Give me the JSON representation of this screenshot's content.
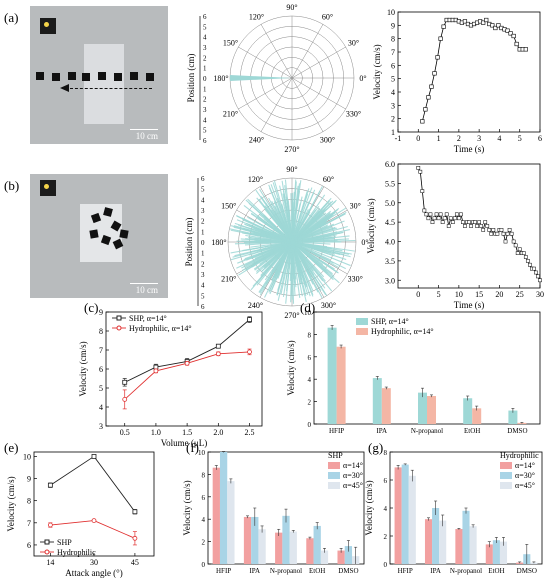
{
  "panels": {
    "a": {
      "label": "(a)",
      "scale": "10 cm"
    },
    "b": {
      "label": "(b)",
      "scale": "10 cm"
    },
    "c": {
      "label": "(c)"
    },
    "d": {
      "label": "(d)"
    },
    "e": {
      "label": "(e)"
    },
    "f": {
      "label": "(f)"
    },
    "g": {
      "label": "(g)"
    }
  },
  "polar": {
    "angle_ticks": [
      "90°",
      "60°",
      "30°",
      "0°",
      "330°",
      "300°",
      "270°",
      "240°",
      "210°",
      "180°",
      "150°",
      "120°"
    ],
    "radial_ticks": [
      "0",
      "1",
      "2",
      "3",
      "4",
      "5",
      "6"
    ],
    "ylabel": "Position (cm)"
  },
  "colors": {
    "teal": "#9ed8d6",
    "teal_dark": "#7cc6c4",
    "salmon": "#f4b6a5",
    "pink": "#f2a0a0",
    "lightblue": "#a9d4e6",
    "pale": "#dfe6ee",
    "red": "#e03030",
    "black": "#222222"
  },
  "chart_data": [
    {
      "id": "a-polar",
      "type": "line",
      "title": "",
      "xlabel": "",
      "ylabel": "Position (cm)",
      "theta_deg": [
        180
      ],
      "r": [
        6
      ],
      "rlim": [
        0,
        6
      ]
    },
    {
      "id": "a-velocity",
      "type": "line",
      "xlabel": "Time (s)",
      "ylabel": "Velocity (cm/s)",
      "xlim": [
        -1,
        6
      ],
      "ylim": [
        1,
        10
      ],
      "xticks": [
        "-1",
        "0",
        "1",
        "2",
        "3",
        "4",
        "5",
        "6"
      ],
      "yticks": [
        "1",
        "2",
        "3",
        "4",
        "5",
        "6",
        "7",
        "8",
        "9",
        "10"
      ],
      "x": [
        0.2,
        0.35,
        0.5,
        0.65,
        0.8,
        0.95,
        1.1,
        1.25,
        1.4,
        1.55,
        1.7,
        1.85,
        2.0,
        2.15,
        2.3,
        2.45,
        2.6,
        2.75,
        2.9,
        3.05,
        3.2,
        3.35,
        3.5,
        3.65,
        3.8,
        3.95,
        4.1,
        4.25,
        4.4,
        4.55,
        4.7,
        4.85,
        5.0,
        5.15,
        5.3
      ],
      "y": [
        1.8,
        2.7,
        3.6,
        4.4,
        5.4,
        6.6,
        8.0,
        8.9,
        9.4,
        9.4,
        9.4,
        9.4,
        9.3,
        9.2,
        9.3,
        9.1,
        9.0,
        9.1,
        9.2,
        9.3,
        9.2,
        9.4,
        9.1,
        9.0,
        8.8,
        9.0,
        8.8,
        8.7,
        8.6,
        8.4,
        8.2,
        7.6,
        7.2,
        7.2,
        7.2
      ]
    },
    {
      "id": "b-polar",
      "type": "line",
      "ylabel": "Position (cm)",
      "rlim": [
        0,
        6
      ],
      "description_series": "dense radial lines in all directions"
    },
    {
      "id": "b-velocity",
      "type": "line",
      "xlabel": "Time (s)",
      "ylabel": "Velocity (cm/s)",
      "xlim": [
        -5,
        30
      ],
      "ylim": [
        2.8,
        6.0
      ],
      "xticks": [
        "0",
        "5",
        "10",
        "15",
        "20",
        "25",
        "30"
      ],
      "yticks": [
        "3.0",
        "3.5",
        "4.0",
        "4.5",
        "5.0",
        "5.5",
        "6.0"
      ],
      "x": [
        0,
        0.5,
        1,
        1.5,
        2,
        2.5,
        3,
        3.5,
        4,
        4.5,
        5,
        5.5,
        6,
        6.5,
        7,
        7.5,
        8,
        8.5,
        9,
        9.5,
        10,
        10.5,
        11,
        11.5,
        12,
        12.5,
        13,
        13.5,
        14,
        14.5,
        15,
        15.5,
        16,
        16.5,
        17,
        17.5,
        18,
        18.5,
        19,
        19.5,
        20,
        20.5,
        21,
        21.5,
        22,
        22.5,
        23,
        23.5,
        24,
        24.5,
        25,
        25.5,
        26,
        26.5,
        27,
        27.5,
        28,
        28.5,
        29,
        29.5,
        30
      ],
      "y": [
        5.9,
        5.8,
        5.3,
        4.8,
        4.7,
        4.6,
        4.7,
        4.5,
        4.6,
        4.7,
        4.6,
        4.7,
        4.5,
        4.6,
        4.7,
        4.4,
        4.6,
        4.5,
        4.6,
        4.7,
        4.6,
        4.7,
        4.5,
        4.4,
        4.5,
        4.5,
        4.4,
        4.5,
        4.5,
        4.4,
        4.5,
        4.4,
        4.3,
        4.5,
        4.4,
        4.3,
        4.2,
        4.3,
        4.2,
        4.2,
        4.3,
        4.3,
        4.2,
        4.0,
        4.2,
        4.3,
        4.2,
        4.0,
        3.9,
        3.7,
        3.8,
        3.7,
        3.7,
        3.6,
        3.5,
        3.4,
        3.3,
        3.3,
        3.2,
        3.1,
        3.0
      ]
    },
    {
      "id": "c",
      "type": "line",
      "xlabel": "Volume (μL)",
      "ylabel": "Velocity (cm/s)",
      "xlim": [
        0.2,
        2.7
      ],
      "ylim": [
        3,
        9
      ],
      "xticks": [
        "0.5",
        "1.0",
        "1.5",
        "2.0",
        "2.5"
      ],
      "yticks": [
        "3",
        "4",
        "5",
        "6",
        "7",
        "8",
        "9"
      ],
      "x": [
        0.5,
        1.0,
        1.5,
        2.0,
        2.5
      ],
      "series": [
        {
          "name": "SHP, α=14°",
          "values": [
            5.3,
            6.1,
            6.4,
            7.2,
            8.6
          ],
          "err": [
            0.2,
            0.15,
            0.15,
            0.1,
            0.15
          ]
        },
        {
          "name": "Hydrophilic, α=14°",
          "values": [
            4.4,
            5.9,
            6.3,
            6.8,
            6.9
          ],
          "err": [
            0.5,
            0.1,
            0.1,
            0.1,
            0.15
          ]
        }
      ]
    },
    {
      "id": "d",
      "type": "bar",
      "xlabel": "",
      "ylabel": "Velocity (cm/s)",
      "ylim": [
        0,
        10
      ],
      "yticks": [
        "0",
        "2",
        "4",
        "6",
        "8",
        "10"
      ],
      "categories": [
        "HFIP",
        "IPA",
        "N-propanol",
        "EtOH",
        "DMSO"
      ],
      "series": [
        {
          "name": "SHP, α=14°",
          "values": [
            8.6,
            4.1,
            2.8,
            2.3,
            1.2
          ],
          "err": [
            0.2,
            0.15,
            0.4,
            0.2,
            0.2
          ]
        },
        {
          "name": "Hydrophilic, α=14°",
          "values": [
            6.9,
            3.2,
            2.5,
            1.4,
            0.1
          ],
          "err": [
            0.15,
            0.1,
            0.1,
            0.2,
            0.05
          ]
        }
      ]
    },
    {
      "id": "e",
      "type": "line",
      "xlabel": "Attack angle (°)",
      "ylabel": "Velocity (cm/s)",
      "xlim": [
        8,
        52
      ],
      "ylim": [
        5.5,
        10.2
      ],
      "xticks": [
        "14",
        "30",
        "45"
      ],
      "yticks": [
        "6",
        "7",
        "8",
        "9",
        "10"
      ],
      "x": [
        14,
        30,
        45
      ],
      "series": [
        {
          "name": "SHP",
          "values": [
            8.7,
            10.0,
            7.5
          ],
          "err": [
            0.1,
            0.05,
            0.1
          ]
        },
        {
          "name": "Hydrophilic",
          "values": [
            6.9,
            7.1,
            6.3
          ],
          "err": [
            0.1,
            0.05,
            0.3
          ]
        }
      ]
    },
    {
      "id": "f",
      "type": "bar",
      "ylabel": "Velocity (cm/s)",
      "ylim": [
        0,
        10
      ],
      "yticks": [
        "0",
        "2",
        "4",
        "6",
        "8",
        "10"
      ],
      "legend_title": "SHP",
      "categories": [
        "HFIP",
        "IPA",
        "N-propanol",
        "EtOH",
        "DMSO"
      ],
      "series": [
        {
          "name": "α=14°",
          "values": [
            8.6,
            4.2,
            2.8,
            2.3,
            1.2
          ],
          "err": [
            0.2,
            0.1,
            0.3,
            0.1,
            0.2
          ]
        },
        {
          "name": "α=30°",
          "values": [
            10.0,
            4.2,
            4.3,
            3.4,
            1.6
          ],
          "err": [
            0.05,
            0.8,
            0.6,
            0.3,
            0.5
          ]
        },
        {
          "name": "α=45°",
          "values": [
            7.4,
            3.1,
            2.9,
            1.2,
            0.7
          ],
          "err": [
            0.2,
            0.3,
            0.1,
            0.2,
            0.8
          ]
        }
      ]
    },
    {
      "id": "g",
      "type": "bar",
      "ylabel": "Velocity (cm/s)",
      "ylim": [
        0,
        8
      ],
      "yticks": [
        "0",
        "2",
        "4",
        "6",
        "8"
      ],
      "legend_title": "Hydrophilic",
      "categories": [
        "HFIP",
        "IPA",
        "N-propanol",
        "EtOH",
        "DMSO"
      ],
      "series": [
        {
          "name": "α=14°",
          "values": [
            6.9,
            3.2,
            2.5,
            1.4,
            0.1
          ],
          "err": [
            0.15,
            0.1,
            0.05,
            0.2,
            0.05
          ]
        },
        {
          "name": "α=30°",
          "values": [
            7.1,
            4.0,
            3.8,
            1.7,
            0.7
          ],
          "err": [
            0.05,
            0.5,
            0.2,
            0.2,
            0.7
          ]
        },
        {
          "name": "α=45°",
          "values": [
            6.3,
            3.1,
            2.7,
            1.6,
            0.1
          ],
          "err": [
            0.4,
            0.4,
            0.1,
            0.3,
            0.05
          ]
        }
      ]
    }
  ]
}
